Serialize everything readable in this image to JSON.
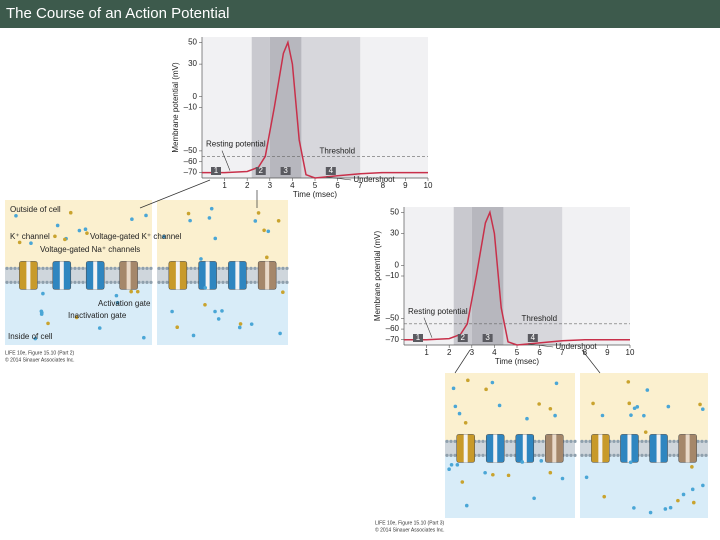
{
  "header": {
    "title": "The Course of an Action Potential"
  },
  "figures": [
    {
      "labels": [
        "Outside of cell",
        "K⁺ channel",
        "Voltage-gated Na⁺ channels",
        "Voltage-gated K⁺ channel",
        "Activation gate",
        "Inactivation gate",
        "Inside of cell"
      ],
      "caption": "LIFE 10e, Figure 15.10 (Part 2)",
      "copyright": "© 2014 Sinauer Associates Inc."
    },
    {
      "caption": "LIFE 10e, Figure 15.10 (Part 3)",
      "copyright": "© 2014 Sinauer Associates Inc."
    }
  ],
  "chart_data": [
    {
      "type": "line",
      "y_label": "Membrane potential (mV)",
      "x_label": "Time (msec)",
      "x": [
        0,
        1,
        2,
        2.5,
        2.8,
        3.2,
        3.6,
        3.8,
        4.0,
        4.3,
        4.6,
        5,
        6,
        7,
        8,
        9,
        10
      ],
      "series": [
        {
          "color": "#c8304a",
          "values": [
            -70,
            -70,
            -69,
            -65,
            -55,
            -10,
            40,
            50,
            30,
            -40,
            -72,
            -75,
            -73,
            -71,
            -70,
            -70,
            -70
          ]
        }
      ],
      "xlim": [
        0,
        10
      ],
      "xticks": [
        1,
        2,
        3,
        4,
        5,
        6,
        7,
        8,
        9,
        10
      ],
      "ylim": [
        -75,
        55
      ],
      "yticks": [
        50,
        30,
        0,
        {
          "value": -10,
          "label": "–10"
        },
        {
          "value": -50,
          "label": "–50"
        },
        {
          "value": -60,
          "label": "–60"
        },
        {
          "value": -70,
          "label": "–70"
        }
      ],
      "threshold": {
        "label": "Threshold",
        "value": -55
      },
      "annotations": [
        "Resting potential",
        "Undershoot"
      ],
      "phases": [
        {
          "label": "1",
          "start": 0,
          "end": 2.2
        },
        {
          "label": "2",
          "start": 2.2,
          "end": 3.0
        },
        {
          "label": "3",
          "start": 3.0,
          "end": 4.4
        },
        {
          "label": "4",
          "start": 4.4,
          "end": 7.0
        }
      ]
    },
    {
      "type": "line",
      "y_label": "Membrane potential (mV)",
      "x_label": "Time (msec)",
      "x": [
        0,
        1,
        2,
        2.5,
        2.8,
        3.2,
        3.6,
        3.8,
        4.0,
        4.3,
        4.6,
        5,
        6,
        7,
        8,
        9,
        10
      ],
      "series": [
        {
          "color": "#c8304a",
          "values": [
            -70,
            -70,
            -69,
            -65,
            -55,
            -10,
            40,
            50,
            30,
            -40,
            -72,
            -75,
            -73,
            -71,
            -70,
            -70,
            -70
          ]
        }
      ],
      "xlim": [
        0,
        10
      ],
      "xticks": [
        1,
        2,
        3,
        4,
        5,
        6,
        7,
        8,
        9,
        10
      ],
      "ylim": [
        -75,
        55
      ],
      "yticks": [
        50,
        30,
        0,
        {
          "value": -10,
          "label": "–10"
        },
        {
          "value": -50,
          "label": "–50"
        },
        {
          "value": -60,
          "label": "–60"
        },
        {
          "value": -70,
          "label": "–70"
        }
      ],
      "threshold": {
        "label": "Threshold",
        "value": -55
      },
      "annotations": [
        "Resting potential",
        "Undershoot"
      ],
      "phases": [
        {
          "label": "1",
          "start": 0,
          "end": 2.2
        },
        {
          "label": "2",
          "start": 2.2,
          "end": 3.0
        },
        {
          "label": "3",
          "start": 3.0,
          "end": 4.4
        },
        {
          "label": "4",
          "start": 4.4,
          "end": 7.0
        }
      ]
    }
  ]
}
